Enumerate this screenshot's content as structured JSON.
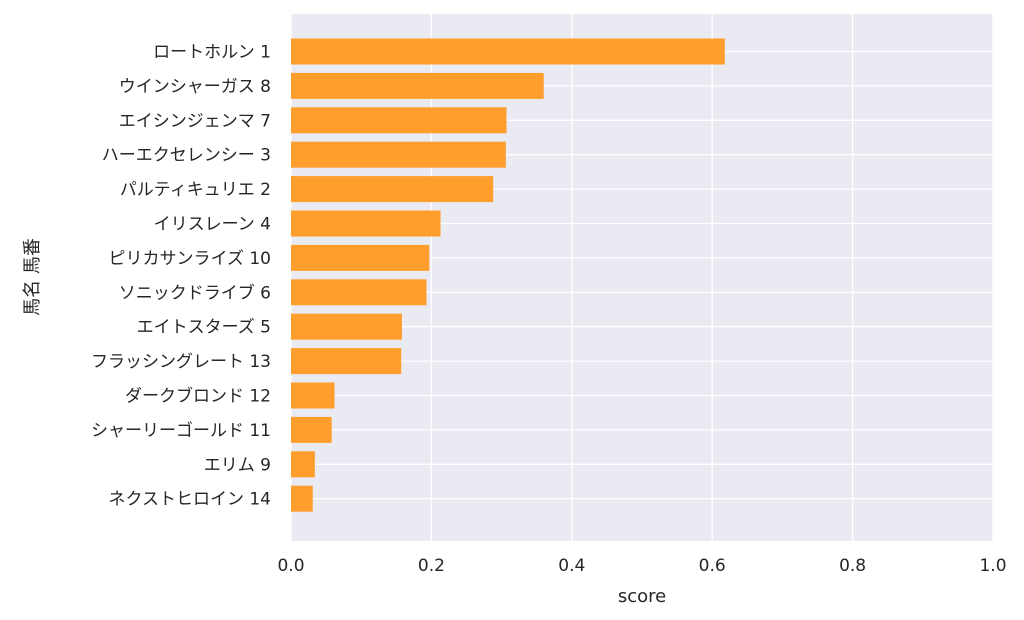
{
  "chart_data": {
    "type": "bar",
    "orientation": "horizontal",
    "categories": [
      "ロートホルン 1",
      "ウインシャーガス 8",
      "エイシンジェンマ 7",
      "ハーエクセレンシー 3",
      "パルティキュリエ 2",
      "イリスレーン 4",
      "ピリカサンライズ 10",
      "ソニックドライブ 6",
      "エイトスターズ 5",
      "フラッシングレート 13",
      "ダークブロンド 12",
      "シャーリーゴールド 11",
      "エリム 9",
      "ネクストヒロイン 14"
    ],
    "values": [
      0.618,
      0.36,
      0.307,
      0.306,
      0.288,
      0.213,
      0.197,
      0.193,
      0.158,
      0.157,
      0.062,
      0.058,
      0.034,
      0.031
    ],
    "xlabel": "score",
    "ylabel": "馬名 馬番",
    "xlim": [
      0,
      1.0
    ],
    "xticks": [
      "0.0",
      "0.2",
      "0.4",
      "0.6",
      "0.8",
      "1.0"
    ],
    "grid": true,
    "colors": {
      "bar": "#FF9E2C",
      "plot_bg": "#EAEAF2",
      "grid": "#FFFFFF",
      "text": "#262626"
    }
  }
}
